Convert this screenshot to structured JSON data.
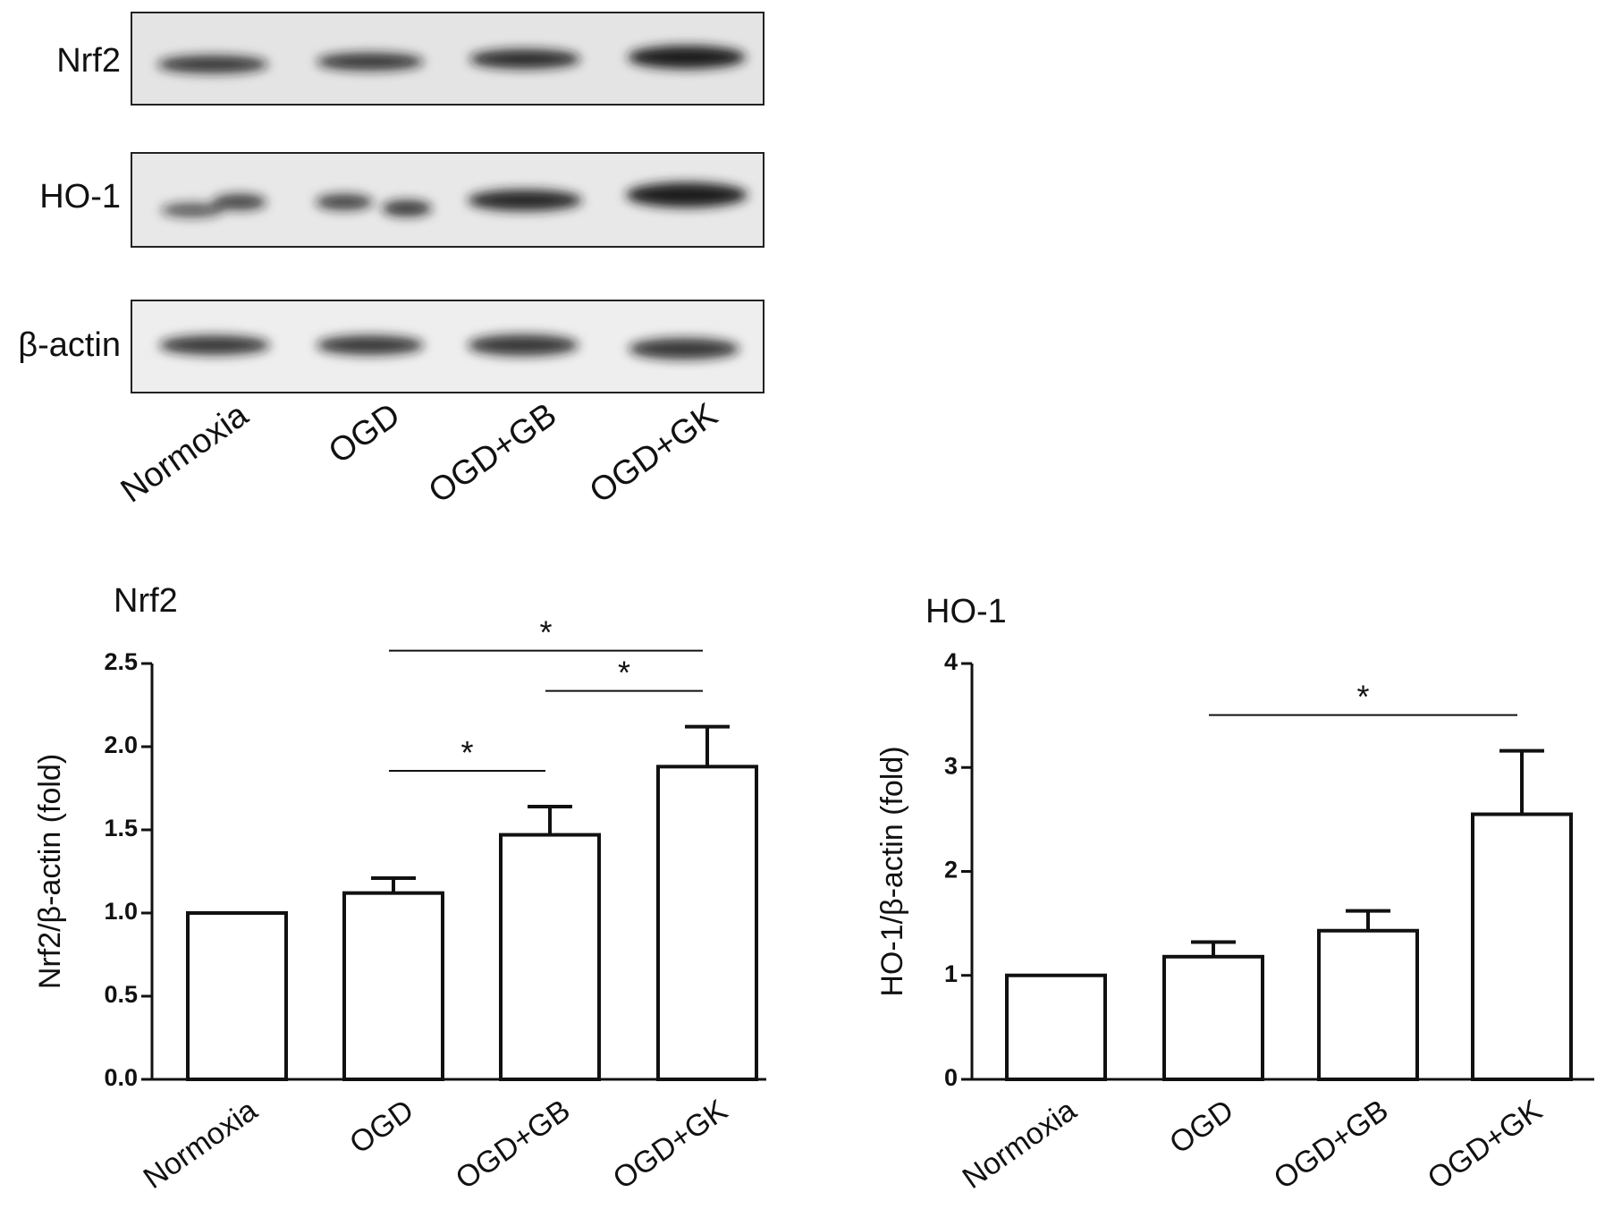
{
  "blot": {
    "rows": [
      "Nrf2",
      "HO-1",
      "β-actin"
    ],
    "lanes": [
      "Normoxia",
      "OGD",
      "OGD+GB",
      "OGD+GK"
    ]
  },
  "chart_data": [
    {
      "type": "bar",
      "title": "Nrf2",
      "y_label": "Nrf2/β-actin (fold)",
      "categories": [
        "Normoxia",
        "OGD",
        "OGD+GB",
        "OGD+GK"
      ],
      "values": [
        1.0,
        1.12,
        1.47,
        1.88
      ],
      "errors": [
        0,
        0.09,
        0.17,
        0.24
      ],
      "ylim": [
        0,
        2.5
      ],
      "yticks": [
        {
          "value": 0,
          "label": "0.0"
        },
        0.5,
        {
          "value": 1,
          "label": "1.0"
        },
        1.5,
        {
          "value": 2,
          "label": "2.0"
        },
        2.5
      ],
      "color": "#ffffff",
      "annotations": [
        {
          "from": 1,
          "to": 2,
          "label": "*"
        },
        {
          "from": 2,
          "to": 3,
          "label": "*"
        },
        {
          "from": 1,
          "to": 3,
          "label": "*"
        }
      ]
    },
    {
      "type": "bar",
      "title": "HO-1",
      "y_label": "HO-1/β-actin (fold)",
      "categories": [
        "Normoxia",
        "OGD",
        "OGD+GB",
        "OGD+GK"
      ],
      "values": [
        1.0,
        1.18,
        1.43,
        2.55
      ],
      "errors": [
        0,
        0.14,
        0.19,
        0.61
      ],
      "ylim": [
        0,
        4
      ],
      "yticks": [
        0,
        1,
        2,
        3,
        4
      ],
      "color": "#ffffff",
      "annotations": [
        {
          "from": 1,
          "to": 3,
          "label": "*"
        }
      ]
    }
  ]
}
